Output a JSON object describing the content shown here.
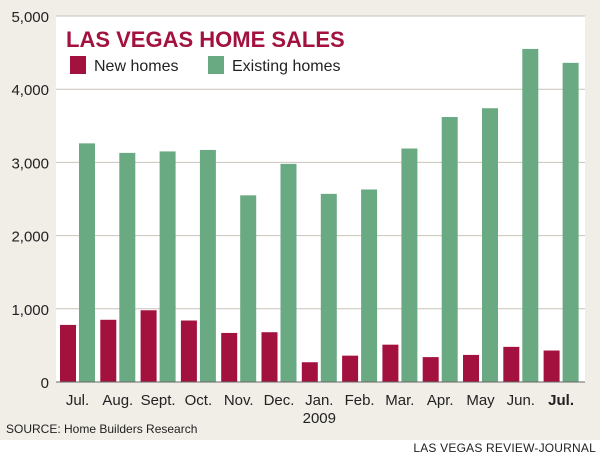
{
  "chart_data": {
    "type": "bar",
    "title": "LAS VEGAS HOME SALES",
    "categories": [
      "Jul.",
      "Aug.",
      "Sept.",
      "Oct.",
      "Nov.",
      "Dec.",
      "Jan.",
      "Feb.",
      "Mar.",
      "Apr.",
      "May",
      "Jun.",
      "Jul."
    ],
    "year_label": "2009",
    "series": [
      {
        "name": "New homes",
        "color": "#a3123f",
        "values": [
          780,
          850,
          980,
          840,
          670,
          680,
          270,
          360,
          510,
          340,
          370,
          480,
          430
        ]
      },
      {
        "name": "Existing homes",
        "color": "#6aaa83",
        "values": [
          3260,
          3130,
          3150,
          3170,
          2550,
          2980,
          2570,
          2630,
          3190,
          3620,
          3740,
          4550,
          4360
        ]
      }
    ],
    "yticks": [
      "0",
      "1,000",
      "2,000",
      "3,000",
      "4,000",
      "5,000"
    ],
    "ylim": [
      0,
      5000
    ],
    "grid": true,
    "legend_position": "top-left",
    "highlight_last_category": true,
    "source": "SOURCE: Home Builders Research"
  },
  "credit": "LAS VEGAS REVIEW-JOURNAL"
}
